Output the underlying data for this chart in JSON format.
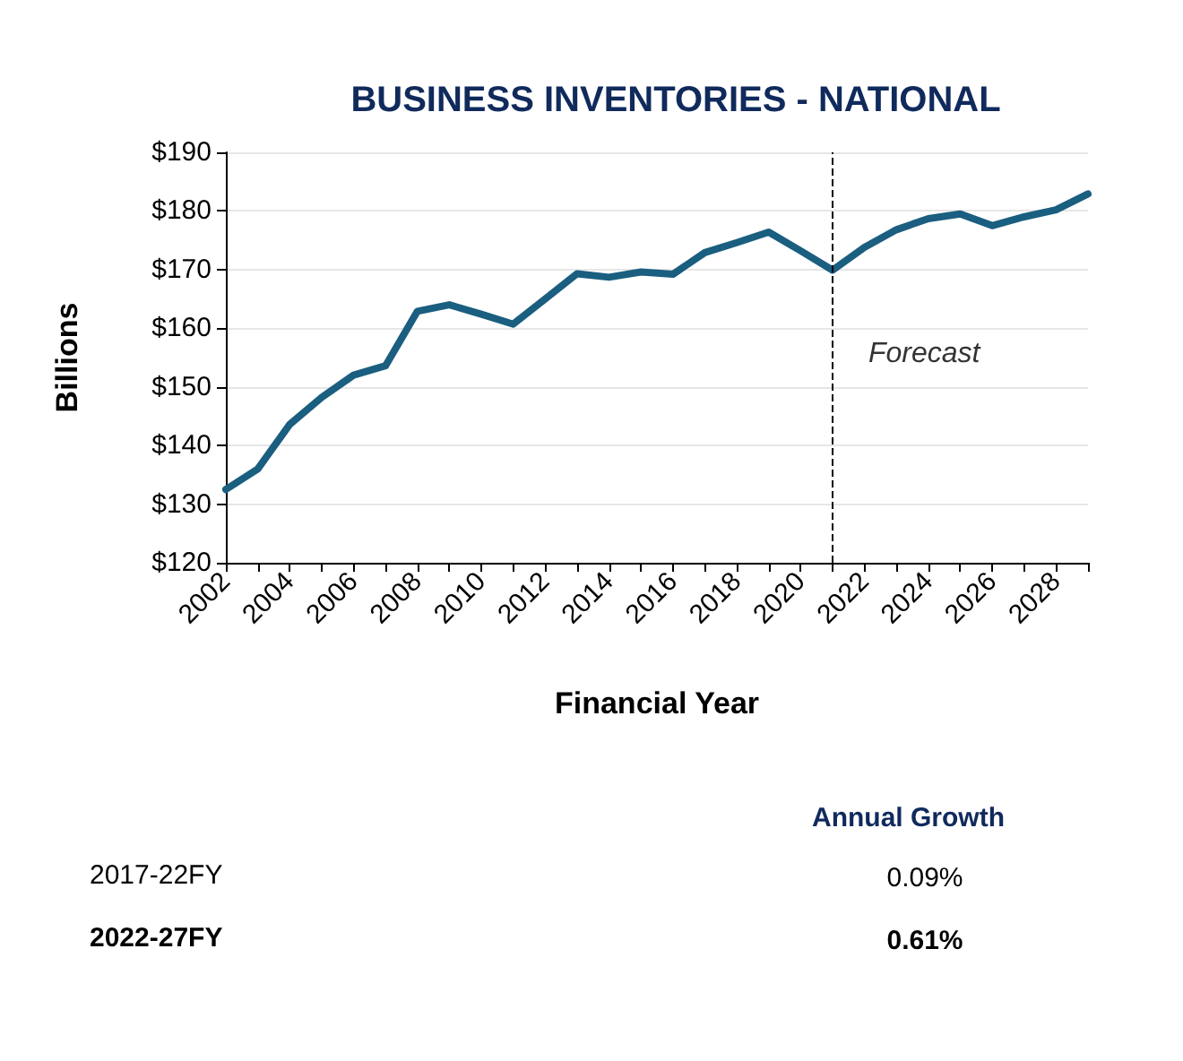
{
  "chart_data": {
    "type": "line",
    "title": "BUSINESS INVENTORIES - NATIONAL",
    "xlabel": "Financial Year",
    "ylabel": "Billions",
    "x": [
      2002,
      2003,
      2004,
      2005,
      2006,
      2007,
      2008,
      2009,
      2010,
      2011,
      2012,
      2013,
      2014,
      2015,
      2016,
      2017,
      2018,
      2019,
      2020,
      2021,
      2022,
      2023,
      2024,
      2025,
      2026,
      2027,
      2028,
      2029
    ],
    "series": [
      {
        "color": "#1a5e80",
        "values": [
          132.5,
          136.0,
          143.6,
          148.2,
          152.0,
          153.6,
          162.9,
          164.0,
          162.4,
          160.7,
          165.0,
          169.3,
          168.7,
          169.6,
          169.2,
          172.9,
          174.6,
          176.4,
          173.2,
          169.9,
          173.8,
          176.8,
          178.7,
          179.5,
          177.5,
          179.0,
          180.2,
          182.9
        ]
      }
    ],
    "xlim": [
      2002,
      2029
    ],
    "xticks": [
      2002,
      {
        "value": 2003,
        "label": null
      },
      2004,
      {
        "value": 2005,
        "label": null
      },
      2006,
      {
        "value": 2007,
        "label": null
      },
      2008,
      {
        "value": 2009,
        "label": null
      },
      2010,
      {
        "value": 2011,
        "label": null
      },
      2012,
      {
        "value": 2013,
        "label": null
      },
      2014,
      {
        "value": 2015,
        "label": null
      },
      2016,
      {
        "value": 2017,
        "label": null
      },
      2018,
      {
        "value": 2019,
        "label": null
      },
      2020,
      {
        "value": 2021,
        "label": null
      },
      2022,
      {
        "value": 2023,
        "label": null
      },
      2024,
      {
        "value": 2025,
        "label": null
      },
      2026,
      {
        "value": 2027,
        "label": null
      },
      2028,
      {
        "value": 2029,
        "label": null
      }
    ],
    "ylim": [
      120,
      190
    ],
    "yticks": [
      {
        "value": 120,
        "label": "$120"
      },
      {
        "value": 130,
        "label": "$130"
      },
      {
        "value": 140,
        "label": "$140"
      },
      {
        "value": 150,
        "label": "$150"
      },
      {
        "value": 160,
        "label": "$160"
      },
      {
        "value": 170,
        "label": "$170"
      },
      {
        "value": 180,
        "label": "$180"
      },
      {
        "value": 190,
        "label": "$190"
      }
    ],
    "grid": "y",
    "marker": "none",
    "line_style": "solid",
    "ref_lines": [
      {
        "axis": "x",
        "value": 2021,
        "label": "Forecast",
        "color": "#000000",
        "line_style": "dashed"
      }
    ],
    "annotations": [
      "Annual Growth",
      "2017-22FY",
      "0.09%",
      "2022-27FY",
      "0.61%"
    ]
  }
}
